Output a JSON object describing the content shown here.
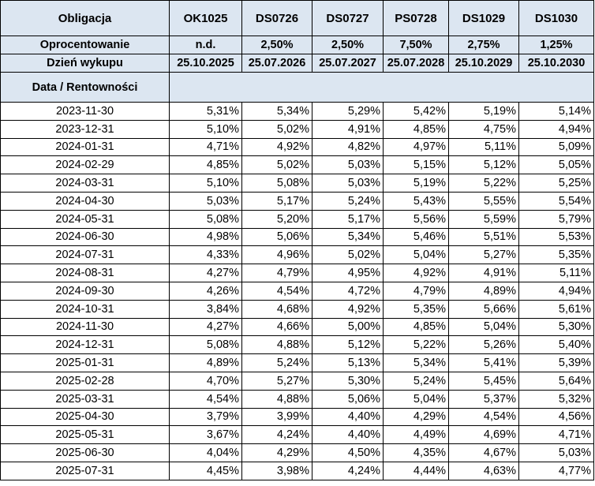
{
  "header": {
    "corner_label": "Obligacja",
    "bonds": [
      "OK1025",
      "DS0726",
      "DS0727",
      "PS0728",
      "DS1029",
      "DS1030"
    ],
    "coupon_label": "Oprocentowanie",
    "coupons": [
      "n.d.",
      "2,50%",
      "2,50%",
      "7,50%",
      "2,75%",
      "1,25%"
    ],
    "maturity_label": "Dzień wykupu",
    "maturities": [
      "25.10.2025",
      "25.07.2026",
      "25.07.2027",
      "25.07.2028",
      "25.10.2029",
      "25.10.2030"
    ],
    "data_label": "Data / Rentowności"
  },
  "rows": [
    {
      "date": "2023-11-30",
      "values": [
        "5,31%",
        "5,34%",
        "5,29%",
        "5,42%",
        "5,19%",
        "5,14%"
      ]
    },
    {
      "date": "2023-12-31",
      "values": [
        "5,10%",
        "5,02%",
        "4,91%",
        "4,85%",
        "4,75%",
        "4,94%"
      ]
    },
    {
      "date": "2024-01-31",
      "values": [
        "4,71%",
        "4,92%",
        "4,82%",
        "4,97%",
        "5,11%",
        "5,09%"
      ]
    },
    {
      "date": "2024-02-29",
      "values": [
        "4,85%",
        "5,02%",
        "5,03%",
        "5,15%",
        "5,12%",
        "5,05%"
      ]
    },
    {
      "date": "2024-03-31",
      "values": [
        "5,10%",
        "5,08%",
        "5,03%",
        "5,19%",
        "5,22%",
        "5,25%"
      ]
    },
    {
      "date": "2024-04-30",
      "values": [
        "5,03%",
        "5,17%",
        "5,24%",
        "5,43%",
        "5,55%",
        "5,54%"
      ]
    },
    {
      "date": "2024-05-31",
      "values": [
        "5,08%",
        "5,20%",
        "5,17%",
        "5,56%",
        "5,59%",
        "5,79%"
      ]
    },
    {
      "date": "2024-06-30",
      "values": [
        "4,98%",
        "5,06%",
        "5,34%",
        "5,46%",
        "5,51%",
        "5,53%"
      ]
    },
    {
      "date": "2024-07-31",
      "values": [
        "4,33%",
        "4,96%",
        "5,02%",
        "5,04%",
        "5,27%",
        "5,35%"
      ]
    },
    {
      "date": "2024-08-31",
      "values": [
        "4,27%",
        "4,79%",
        "4,95%",
        "4,92%",
        "4,91%",
        "5,11%"
      ]
    },
    {
      "date": "2024-09-30",
      "values": [
        "4,26%",
        "4,54%",
        "4,72%",
        "4,79%",
        "4,89%",
        "4,94%"
      ]
    },
    {
      "date": "2024-10-31",
      "values": [
        "3,84%",
        "4,68%",
        "4,92%",
        "5,35%",
        "5,66%",
        "5,61%"
      ]
    },
    {
      "date": "2024-11-30",
      "values": [
        "4,27%",
        "4,66%",
        "5,00%",
        "4,85%",
        "5,04%",
        "5,30%"
      ]
    },
    {
      "date": "2024-12-31",
      "values": [
        "5,08%",
        "4,88%",
        "5,12%",
        "5,22%",
        "5,26%",
        "5,40%"
      ]
    },
    {
      "date": "2025-01-31",
      "values": [
        "4,89%",
        "5,24%",
        "5,13%",
        "5,34%",
        "5,41%",
        "5,39%"
      ]
    },
    {
      "date": "2025-02-28",
      "values": [
        "4,70%",
        "5,27%",
        "5,30%",
        "5,24%",
        "5,45%",
        "5,64%"
      ]
    },
    {
      "date": "2025-03-31",
      "values": [
        "4,54%",
        "4,88%",
        "5,06%",
        "5,04%",
        "5,37%",
        "5,32%"
      ]
    },
    {
      "date": "2025-04-30",
      "values": [
        "3,79%",
        "3,99%",
        "4,40%",
        "4,29%",
        "4,54%",
        "4,56%"
      ]
    },
    {
      "date": "2025-05-31",
      "values": [
        "3,67%",
        "4,24%",
        "4,40%",
        "4,49%",
        "4,69%",
        "4,71%"
      ]
    },
    {
      "date": "2025-06-30",
      "values": [
        "4,04%",
        "4,29%",
        "4,50%",
        "4,35%",
        "4,67%",
        "5,03%"
      ]
    },
    {
      "date": "2025-07-31",
      "values": [
        "4,45%",
        "3,98%",
        "4,24%",
        "4,44%",
        "4,63%",
        "4,77%"
      ]
    }
  ]
}
